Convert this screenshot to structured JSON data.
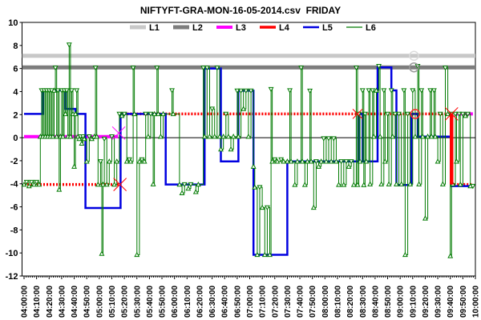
{
  "title": "NIFTYFT-GRA-MON-16-05-2014.csv  FRIDAY",
  "chart_data": {
    "type": "line",
    "title": "NIFTYFT-GRA-MON-16-05-2014.csv  FRIDAY",
    "x_axis": {
      "unit": "time",
      "start_minute": 0,
      "end_minute": 360,
      "labels": [
        "04:00:00",
        "04:10:00",
        "04:20:00",
        "04:30:00",
        "04:40:00",
        "04:50:00",
        "05:00:00",
        "05:10:00",
        "05:20:00",
        "05:30:00",
        "05:40:00",
        "05:50:00",
        "06:00:00",
        "06:10:00",
        "06:20:00",
        "06:30:00",
        "06:40:00",
        "06:50:00",
        "07:00:00",
        "07:10:00",
        "07:20:00",
        "07:30:00",
        "07:40:00",
        "07:50:00",
        "08:00:00",
        "08:10:00",
        "08:20:00",
        "08:30:00",
        "08:40:00",
        "08:50:00",
        "09:00:00",
        "09:10:00",
        "09:20:00",
        "09:30:00",
        "09:40:00",
        "09:50:00",
        "10:00:00"
      ],
      "minor_ticks_per_major": 5
    },
    "y_axis": {
      "min": -12,
      "max": 10,
      "labels": [
        "10",
        "8",
        "6",
        "4",
        "2",
        "0",
        "-2",
        "-4",
        "-6",
        "-8",
        "-10",
        "-12"
      ],
      "zero_line": true
    },
    "legend": {
      "position": "top-center"
    },
    "grid": false,
    "series": [
      {
        "name": "L1",
        "color": "#c8c8c8",
        "width": 5,
        "dash": "",
        "marker": "none",
        "segments": [
          [
            [
              -1.5,
              7.1
            ],
            [
              360,
              7.1
            ]
          ]
        ]
      },
      {
        "name": "L2",
        "color": "#7d7d7d",
        "width": 5,
        "dash": "",
        "marker": "none",
        "segments": [
          [
            [
              -1.5,
              6.1
            ],
            [
              360,
              6.1
            ]
          ]
        ]
      },
      {
        "name": "L3",
        "color": "#ff00ff",
        "width": 4,
        "dash": "",
        "marker": "none",
        "segments": [
          [
            [
              0,
              0.1
            ],
            [
              75,
              0.1
            ]
          ],
          [
            [
              343,
              2.06
            ],
            [
              358,
              2.06
            ]
          ]
        ]
      },
      {
        "name": "L4",
        "color": "#ff0000",
        "width": 3.5,
        "dash": "2,2",
        "marker": "none",
        "segments": [
          [
            [
              0,
              -4.06
            ],
            [
              76,
              -4.06
            ]
          ],
          [
            [
              77,
              2.06
            ],
            [
              341,
              2.06
            ],
            [
              341,
              -4.06
            ],
            [
              358,
              -4.06
            ]
          ]
        ]
      },
      {
        "name": "L5",
        "color": "#0000e0",
        "width": 2.5,
        "dash": "",
        "marker": "none",
        "segments": [
          [
            [
              0,
              2.06
            ],
            [
              15,
              4.1
            ],
            [
              33,
              2.5
            ],
            [
              41,
              2.06
            ],
            [
              49,
              -6.1
            ],
            [
              77,
              2.06
            ],
            [
              113,
              -4.06
            ],
            [
              144,
              6.0
            ],
            [
              157,
              -2.06
            ],
            [
              171,
              4.07
            ],
            [
              183,
              -10.16
            ],
            [
              210,
              -2.06
            ],
            [
              267,
              2.06
            ],
            [
              270,
              -2.06
            ],
            [
              282,
              6.1
            ],
            [
              293,
              4.1
            ],
            [
              297,
              -4.1
            ],
            [
              309,
              2.06
            ],
            [
              314,
              0.1
            ],
            [
              341,
              -4.2
            ],
            [
              358,
              -4.2
            ]
          ]
        ]
      },
      {
        "name": "L6",
        "color": "#007a00",
        "width": 1,
        "dash": "",
        "marker": "triangle",
        "segments": [
          [
            [
              0,
              -4.06
            ],
            [
              2,
              -3.85
            ],
            [
              4,
              -4.2
            ],
            [
              6,
              -3.85
            ],
            [
              8,
              -4.06
            ],
            [
              10,
              -3.85
            ],
            [
              12,
              -4.06
            ],
            [
              13,
              0.1
            ],
            [
              14,
              4.1
            ],
            [
              15,
              0.1
            ],
            [
              16,
              4.1
            ],
            [
              17,
              0.1
            ],
            [
              18,
              4.1
            ],
            [
              19,
              0.1
            ],
            [
              20,
              4.1
            ],
            [
              21,
              0.1
            ],
            [
              22,
              4.1
            ],
            [
              23,
              0.1
            ],
            [
              24,
              4.1
            ],
            [
              25,
              6.06
            ],
            [
              26,
              0.1
            ],
            [
              27,
              4.1
            ],
            [
              28,
              -4.5
            ],
            [
              29,
              0.1
            ],
            [
              30,
              4.1
            ],
            [
              31,
              0.1
            ],
            [
              32,
              4.1
            ],
            [
              33,
              2.06
            ],
            [
              34,
              4.1
            ],
            [
              35,
              0.1
            ],
            [
              36,
              8.06
            ],
            [
              37,
              0.1
            ],
            [
              38,
              4.1
            ],
            [
              39,
              2.06
            ],
            [
              40,
              -2.5
            ],
            [
              41,
              2.06
            ],
            [
              42,
              4.1
            ],
            [
              43,
              0.1
            ],
            [
              44,
              -0.1
            ],
            [
              45,
              0.1
            ],
            [
              46,
              -0.5
            ],
            [
              47,
              0.1
            ],
            [
              48,
              -0.1
            ],
            [
              50,
              -2.06
            ],
            [
              52,
              0.1
            ],
            [
              54,
              -0.1
            ],
            [
              56,
              0.1
            ],
            [
              57,
              6.06
            ],
            [
              58,
              0.1
            ],
            [
              59,
              -4.06
            ],
            [
              61,
              -2.06
            ],
            [
              62,
              -10.06
            ],
            [
              63,
              -4.06
            ],
            [
              64,
              -0.1
            ],
            [
              66,
              -4.06
            ],
            [
              68,
              -2.06
            ],
            [
              70,
              0.1
            ],
            [
              72,
              -4.06
            ],
            [
              74,
              -2.06
            ],
            [
              76,
              2.06
            ],
            [
              78,
              1.9
            ],
            [
              80,
              2.06
            ],
            [
              82,
              -2.06
            ],
            [
              84,
              -1.9
            ],
            [
              85,
              -2.06
            ],
            [
              87,
              6.06
            ],
            [
              88,
              2.06
            ],
            [
              90,
              -10.16
            ],
            [
              92,
              -2.06
            ],
            [
              94,
              -1.9
            ],
            [
              96,
              -2.06
            ],
            [
              97,
              2.06
            ],
            [
              99,
              0.1
            ],
            [
              101,
              2.06
            ],
            [
              103,
              -4.03
            ],
            [
              104,
              2.06
            ],
            [
              106,
              6.06
            ],
            [
              107,
              2.06
            ],
            [
              109,
              0.1
            ],
            [
              111,
              2.06
            ],
            [
              118,
              4.1
            ],
            [
              119,
              2.06
            ],
            [
              124,
              -4.06
            ],
            [
              126,
              -4.8
            ],
            [
              128,
              -4.06
            ],
            [
              131,
              -4.4
            ],
            [
              133,
              -4.06
            ],
            [
              137,
              -4.7
            ],
            [
              139,
              -4.06
            ],
            [
              143,
              6.06
            ],
            [
              144,
              0.1
            ],
            [
              146,
              6.06
            ],
            [
              148,
              0.1
            ],
            [
              150,
              2.5
            ],
            [
              152,
              0.1
            ],
            [
              154,
              6.06
            ],
            [
              156,
              0.1
            ],
            [
              157,
              -1.0
            ],
            [
              159,
              0.1
            ],
            [
              161,
              2.06
            ],
            [
              163,
              0.1
            ],
            [
              165,
              -1.0
            ],
            [
              167,
              0.1
            ],
            [
              170,
              4.07
            ],
            [
              171,
              0.1
            ],
            [
              173,
              4.07
            ],
            [
              175,
              2.5
            ],
            [
              177,
              4.07
            ],
            [
              179,
              0.1
            ],
            [
              181,
              4.07
            ],
            [
              183,
              -2.5
            ],
            [
              184,
              -4.3
            ],
            [
              186,
              -10.16
            ],
            [
              188,
              -4.3
            ],
            [
              190,
              -6.06
            ],
            [
              192,
              -10.16
            ],
            [
              194,
              -6.06
            ],
            [
              196,
              -10.16
            ],
            [
              197,
              4.2
            ],
            [
              198,
              -2.06
            ],
            [
              200,
              -1.9
            ],
            [
              202,
              -2.06
            ],
            [
              205,
              -1.9
            ],
            [
              207,
              -2.06
            ],
            [
              210,
              -2.06
            ],
            [
              212,
              4.1
            ],
            [
              213,
              -2.06
            ],
            [
              216,
              -4.08
            ],
            [
              218,
              -2.06
            ],
            [
              221,
              6.06
            ],
            [
              222,
              -2.06
            ],
            [
              224,
              -4.08
            ],
            [
              226,
              -2.06
            ],
            [
              228,
              4.06
            ],
            [
              229,
              -2.06
            ],
            [
              231,
              -6.06
            ],
            [
              233,
              -2.06
            ],
            [
              235,
              -2.5
            ],
            [
              237,
              -2.06
            ],
            [
              239,
              -0.07
            ],
            [
              241,
              -2.06
            ],
            [
              243,
              -0.07
            ],
            [
              245,
              -2.06
            ],
            [
              247,
              -0.07
            ],
            [
              249,
              -2.06
            ],
            [
              251,
              -4.08
            ],
            [
              253,
              -2.06
            ],
            [
              255,
              -4.08
            ],
            [
              257,
              -2.06
            ],
            [
              259,
              -2.5
            ],
            [
              261,
              -2.06
            ],
            [
              263,
              -4.08
            ],
            [
              265,
              6.06
            ],
            [
              266,
              -4.08
            ],
            [
              267,
              2.06
            ],
            [
              268,
              -2.06
            ],
            [
              270,
              4.1
            ],
            [
              271,
              -4.1
            ],
            [
              272,
              2.06
            ],
            [
              273,
              -2.06
            ],
            [
              275,
              4.1
            ],
            [
              276,
              -4.03
            ],
            [
              278,
              4.1
            ],
            [
              279,
              0.1
            ],
            [
              281,
              4.1
            ],
            [
              283,
              6.2
            ],
            [
              284,
              0.1
            ],
            [
              285,
              -4.03
            ],
            [
              287,
              4.1
            ],
            [
              288,
              -2.06
            ],
            [
              290,
              2.06
            ],
            [
              291,
              -4.03
            ],
            [
              293,
              4.1
            ],
            [
              294,
              0.1
            ],
            [
              296,
              2.06
            ],
            [
              297,
              -4.03
            ],
            [
              299,
              2.06
            ],
            [
              301,
              -4.03
            ],
            [
              303,
              4.1
            ],
            [
              304,
              -10.16
            ],
            [
              306,
              2.06
            ],
            [
              308,
              -4.03
            ],
            [
              310,
              4.1
            ],
            [
              312,
              0.1
            ],
            [
              314,
              6.2
            ],
            [
              315,
              -4.03
            ],
            [
              317,
              4.1
            ],
            [
              318,
              0.1
            ],
            [
              320,
              -7.0
            ],
            [
              322,
              0.1
            ],
            [
              324,
              4.1
            ],
            [
              325,
              0.1
            ],
            [
              327,
              4.1
            ],
            [
              328,
              0.1
            ],
            [
              330,
              -2.06
            ],
            [
              332,
              2.06
            ],
            [
              334,
              -4.03
            ],
            [
              336,
              6.06
            ],
            [
              338,
              2.06
            ],
            [
              340,
              -10.26
            ],
            [
              341,
              2.06
            ],
            [
              342,
              -4.03
            ],
            [
              344,
              2.06
            ],
            [
              345,
              -2.06
            ],
            [
              347,
              2.06
            ],
            [
              348,
              -4.06
            ],
            [
              350,
              2.06
            ],
            [
              352,
              1.9
            ],
            [
              354,
              2.06
            ],
            [
              356,
              -4.2
            ],
            [
              358,
              -4.2
            ]
          ]
        ]
      }
    ],
    "x_marks": [
      {
        "t": 75.5,
        "v": 0.4,
        "color": "#ff00ff",
        "s": 8
      },
      {
        "t": 76.5,
        "v": -4.06,
        "color": "#ff0000",
        "s": 8
      },
      {
        "t": 266,
        "v": 2.06,
        "color": "#ff0000",
        "s": 6
      },
      {
        "t": 341,
        "v": 2.06,
        "color": "#ff0000",
        "s": 8
      }
    ],
    "circle_marks": [
      {
        "t": 311,
        "v": 7.1,
        "color": "#dcdcdc"
      },
      {
        "t": 311,
        "v": 6.1,
        "color": "#9a9a9a"
      },
      {
        "t": 312,
        "v": 2.06,
        "color": "#ff2a2a"
      }
    ],
    "solid_vertical": {
      "t": 341,
      "from": 2.06,
      "to": -4.06,
      "color": "#ff0000",
      "width": 4.5
    }
  }
}
